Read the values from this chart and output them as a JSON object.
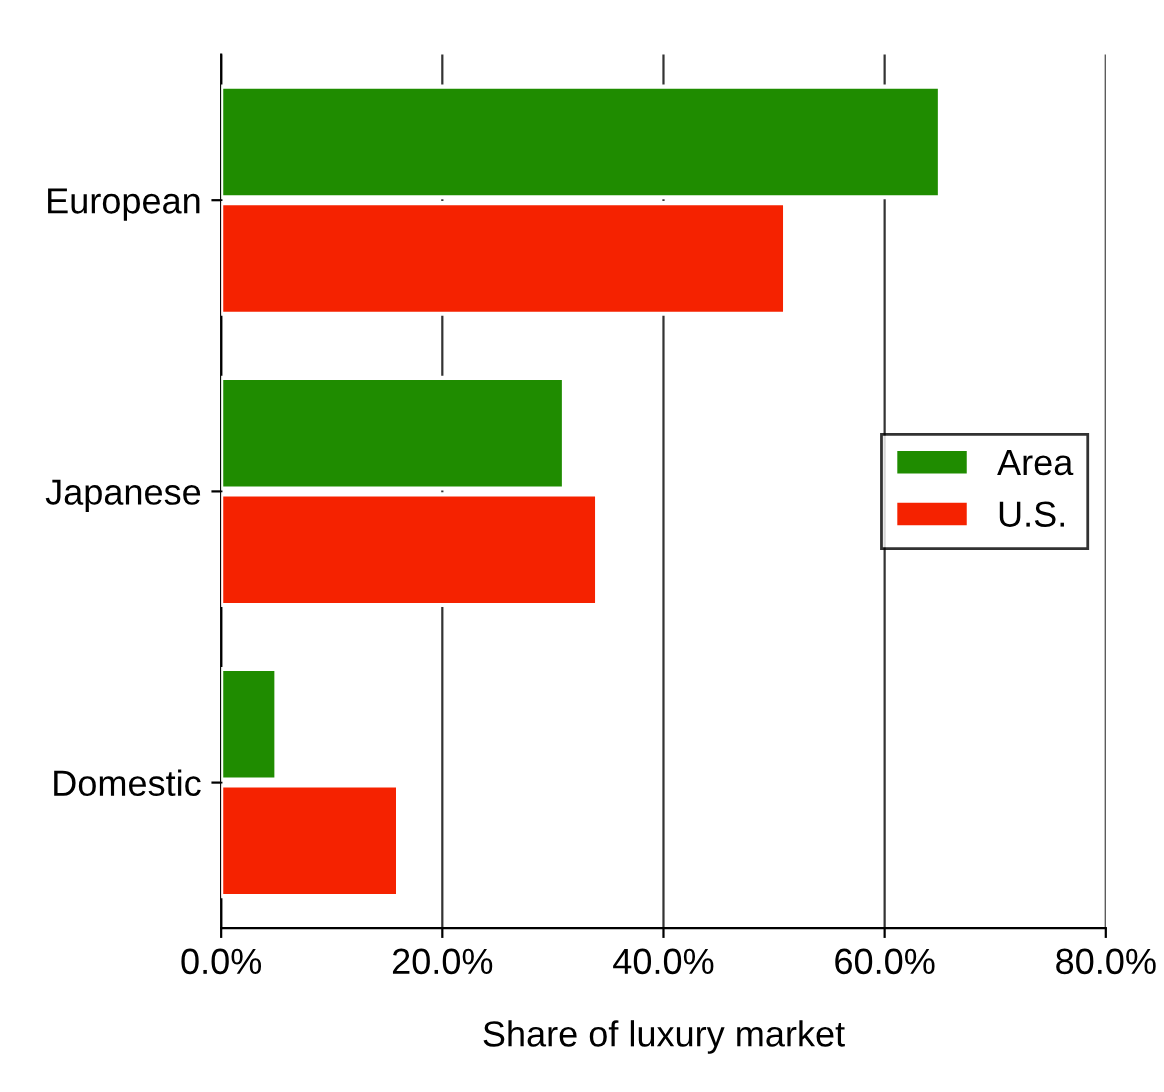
{
  "chart_data": {
    "type": "bar",
    "orientation": "horizontal",
    "xlabel": "Share of luxury market",
    "categories": [
      "European",
      "Japanese",
      "Domestic"
    ],
    "series": [
      {
        "name": "Area",
        "color": "#1f8c00",
        "values": [
          65,
          31,
          5
        ]
      },
      {
        "name": "U.S.",
        "color": "#f52200",
        "values": [
          51,
          34,
          16
        ]
      }
    ],
    "xlim": [
      0,
      80
    ],
    "xticks": [
      {
        "value": 0,
        "label": "0.0%"
      },
      {
        "value": 20,
        "label": "20.0%"
      },
      {
        "value": 40,
        "label": "40.0%"
      },
      {
        "value": 60,
        "label": "60.0%"
      },
      {
        "value": 80,
        "label": "80.0%"
      }
    ],
    "grid": "x",
    "legend": "center right"
  }
}
